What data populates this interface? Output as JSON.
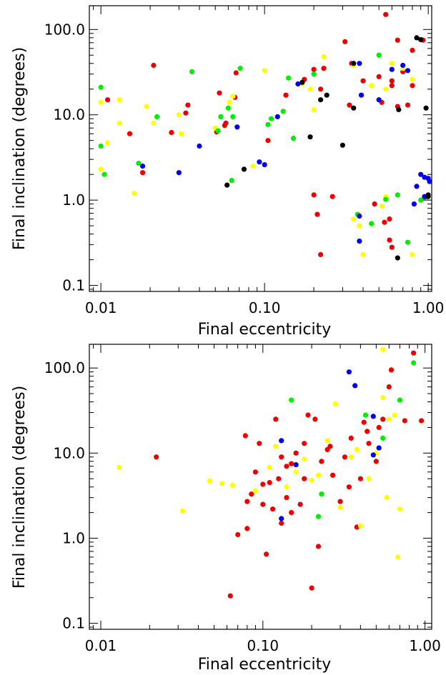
{
  "colors": {
    "red": "#ee0000",
    "yellow": "#ffff00",
    "green": "#00ee00",
    "blue": "#0000ee",
    "black": "#000000"
  },
  "chart_data": [
    {
      "type": "scatter",
      "xlabel": "Final eccentricity",
      "ylabel": "Final inclination (degrees)",
      "xscale": "log",
      "yscale": "log",
      "xlim": [
        0.0085,
        1.05
      ],
      "ylim": [
        0.085,
        190
      ],
      "xticks": [
        {
          "value": 0.01,
          "label": "0.01"
        },
        {
          "value": 0.1,
          "label": "0.10"
        },
        {
          "value": 1.0,
          "label": "1.00"
        }
      ],
      "yticks": [
        {
          "value": 0.1,
          "label": "0.1"
        },
        {
          "value": 1.0,
          "label": "1.0"
        },
        {
          "value": 10.0,
          "label": "10.0"
        },
        {
          "value": 100.0,
          "label": "100.0"
        }
      ],
      "series": [
        {
          "color": "red",
          "points": [
            [
              0.011,
              15
            ],
            [
              0.015,
              6
            ],
            [
              0.018,
              2.1
            ],
            [
              0.021,
              38
            ],
            [
              0.027,
              6.2
            ],
            [
              0.033,
              10.5
            ],
            [
              0.034,
              13
            ],
            [
              0.051,
              6.3
            ],
            [
              0.053,
              18
            ],
            [
              0.057,
              7.5
            ],
            [
              0.058,
              8
            ],
            [
              0.066,
              16
            ],
            [
              0.067,
              31
            ],
            [
              0.105,
              5
            ],
            [
              0.135,
              17
            ],
            [
              0.175,
              26
            ],
            [
              0.2,
              34
            ],
            [
              0.2,
              1.15
            ],
            [
              0.21,
              0.68
            ],
            [
              0.22,
              0.23
            ],
            [
              0.22,
              20
            ],
            [
              0.23,
              35
            ],
            [
              0.26,
              1.1
            ],
            [
              0.31,
              72
            ],
            [
              0.33,
              13
            ],
            [
              0.34,
              40
            ],
            [
              0.4,
              25
            ],
            [
              0.47,
              0.9
            ],
            [
              0.5,
              28
            ],
            [
              0.52,
              14
            ],
            [
              0.54,
              0.55
            ],
            [
              0.55,
              150
            ],
            [
              0.58,
              0.6
            ],
            [
              0.58,
              0.34
            ],
            [
              0.6,
              25
            ],
            [
              0.6,
              0.28
            ],
            [
              0.6,
              22
            ],
            [
              0.65,
              12.5
            ],
            [
              0.65,
              75
            ],
            [
              0.7,
              32
            ],
            [
              0.75,
              13
            ],
            [
              0.8,
              22
            ],
            [
              0.8,
              57
            ],
            [
              0.93,
              75
            ]
          ]
        },
        {
          "color": "yellow",
          "points": [
            [
              0.01,
              14
            ],
            [
              0.01,
              2.3
            ],
            [
              0.011,
              4.7
            ],
            [
              0.013,
              15
            ],
            [
              0.013,
              8
            ],
            [
              0.016,
              1.2
            ],
            [
              0.019,
              12.5
            ],
            [
              0.021,
              8
            ],
            [
              0.03,
              10
            ],
            [
              0.031,
              6
            ],
            [
              0.05,
              7
            ],
            [
              0.061,
              14
            ],
            [
              0.064,
              16.5
            ],
            [
              0.085,
              2.5
            ],
            [
              0.1,
              33
            ],
            [
              0.17,
              23
            ],
            [
              0.19,
              20
            ],
            [
              0.2,
              11.5
            ],
            [
              0.23,
              48
            ],
            [
              0.35,
              0.6
            ],
            [
              0.35,
              38
            ],
            [
              0.38,
              0.5
            ],
            [
              0.4,
              0.23
            ],
            [
              0.45,
              22
            ],
            [
              0.45,
              0.53
            ],
            [
              0.52,
              0.85
            ],
            [
              0.55,
              20
            ],
            [
              0.55,
              1.1
            ],
            [
              0.6,
              40
            ],
            [
              0.7,
              35
            ],
            [
              0.8,
              0.23
            ],
            [
              0.8,
              26
            ]
          ]
        },
        {
          "color": "green",
          "points": [
            [
              0.01,
              21
            ],
            [
              0.01,
              4.3
            ],
            [
              0.0105,
              2
            ],
            [
              0.017,
              2.7
            ],
            [
              0.022,
              9.5
            ],
            [
              0.036,
              32
            ],
            [
              0.052,
              6.5
            ],
            [
              0.054,
              9.5
            ],
            [
              0.06,
              12
            ],
            [
              0.063,
              1.7
            ],
            [
              0.064,
              9.5
            ],
            [
              0.071,
              35
            ],
            [
              0.105,
              7.7
            ],
            [
              0.11,
              9
            ],
            [
              0.13,
              11
            ],
            [
              0.14,
              27
            ],
            [
              0.15,
              5.3
            ],
            [
              0.2,
              30
            ],
            [
              0.37,
              0.68
            ],
            [
              0.45,
              0.53
            ],
            [
              0.5,
              50
            ],
            [
              0.55,
              1.02
            ],
            [
              0.65,
              1.15
            ],
            [
              0.75,
              0.32
            ],
            [
              0.9,
              1
            ],
            [
              0.95,
              1.08
            ]
          ]
        },
        {
          "color": "blue",
          "points": [
            [
              0.018,
              2.5
            ],
            [
              0.03,
              2.1
            ],
            [
              0.04,
              4.3
            ],
            [
              0.068,
              7.2
            ],
            [
              0.093,
              2.8
            ],
            [
              0.1,
              2.6
            ],
            [
              0.12,
              9.5
            ],
            [
              0.16,
              23
            ],
            [
              0.38,
              0.33
            ],
            [
              0.38,
              40
            ],
            [
              0.38,
              0.65
            ],
            [
              0.39,
              17
            ],
            [
              0.5,
              15
            ],
            [
              0.6,
              34
            ],
            [
              0.7,
              38
            ],
            [
              0.75,
              33
            ],
            [
              0.85,
              1.45
            ],
            [
              0.9,
              2
            ],
            [
              0.95,
              1.85
            ],
            [
              0.95,
              1.1
            ],
            [
              1.02,
              1.65
            ],
            [
              1.0,
              1.8
            ],
            [
              0.82,
              0.9
            ]
          ]
        },
        {
          "color": "black",
          "points": [
            [
              0.059,
              1.5
            ],
            [
              0.075,
              2.3
            ],
            [
              0.17,
              24
            ],
            [
              0.19,
              5.5
            ],
            [
              0.22,
              15
            ],
            [
              0.24,
              17
            ],
            [
              0.3,
              4.4
            ],
            [
              0.35,
              12
            ],
            [
              0.35,
              40
            ],
            [
              0.65,
              0.21
            ],
            [
              0.66,
              11.5
            ],
            [
              0.85,
              80
            ],
            [
              0.9,
              76
            ],
            [
              0.97,
              12
            ],
            [
              0.99,
              1.1
            ],
            [
              1.0,
              1.15
            ],
            [
              1.0,
              1.1
            ]
          ]
        }
      ]
    },
    {
      "type": "scatter",
      "xlabel": "Final eccentricity",
      "ylabel": "Final inclination (degrees)",
      "xscale": "log",
      "yscale": "log",
      "xlim": [
        0.0085,
        1.1
      ],
      "ylim": [
        0.085,
        190
      ],
      "xticks": [
        {
          "value": 0.01,
          "label": "0.01"
        },
        {
          "value": 0.1,
          "label": "0.10"
        },
        {
          "value": 1.0,
          "label": "1.00"
        }
      ],
      "yticks": [
        {
          "value": 0.1,
          "label": "0.1"
        },
        {
          "value": 1.0,
          "label": "1.0"
        },
        {
          "value": 10.0,
          "label": "10.0"
        },
        {
          "value": 100.0,
          "label": "100.0"
        }
      ],
      "series": [
        {
          "color": "red",
          "points": [
            [
              0.022,
              9
            ],
            [
              0.063,
              0.21
            ],
            [
              0.07,
              1.1
            ],
            [
              0.08,
              1.3
            ],
            [
              0.078,
              16
            ],
            [
              0.085,
              3.3
            ],
            [
              0.09,
              6
            ],
            [
              0.095,
              13
            ],
            [
              0.1,
              2.5
            ],
            [
              0.1,
              4.3
            ],
            [
              0.105,
              0.65
            ],
            [
              0.11,
              4.5
            ],
            [
              0.115,
              2.2
            ],
            [
              0.12,
              25
            ],
            [
              0.125,
              5
            ],
            [
              0.13,
              9
            ],
            [
              0.13,
              1.5
            ],
            [
              0.14,
              3
            ],
            [
              0.14,
              7
            ],
            [
              0.15,
              2
            ],
            [
              0.16,
              10
            ],
            [
              0.17,
              2.5
            ],
            [
              0.18,
              5
            ],
            [
              0.19,
              28
            ],
            [
              0.2,
              0.26
            ],
            [
              0.21,
              25
            ],
            [
              0.22,
              0.8
            ],
            [
              0.23,
              8
            ],
            [
              0.25,
              11
            ],
            [
              0.27,
              5.5
            ],
            [
              0.3,
              2.7
            ],
            [
              0.32,
              9
            ],
            [
              0.35,
              15
            ],
            [
              0.38,
              1.35
            ],
            [
              0.4,
              5
            ],
            [
              0.42,
              23
            ],
            [
              0.44,
              18
            ],
            [
              0.45,
              13
            ],
            [
              0.5,
              8
            ],
            [
              0.52,
              20
            ],
            [
              0.55,
              25
            ],
            [
              0.6,
              60
            ],
            [
              0.62,
              95
            ],
            [
              0.75,
              24
            ],
            [
              0.85,
              150
            ],
            [
              0.95,
              24
            ],
            [
              0.08,
              2.7
            ],
            [
              0.15,
              7.5
            ],
            [
              0.18,
              13
            ],
            [
              0.26,
              12
            ],
            [
              0.34,
              4
            ]
          ]
        },
        {
          "color": "yellow",
          "points": [
            [
              0.013,
              6.8
            ],
            [
              0.032,
              2.1
            ],
            [
              0.047,
              4.7
            ],
            [
              0.056,
              4.4
            ],
            [
              0.065,
              4.2
            ],
            [
              0.09,
              3.6
            ],
            [
              0.11,
              6.8
            ],
            [
              0.12,
              12
            ],
            [
              0.14,
              4
            ],
            [
              0.16,
              6
            ],
            [
              0.18,
              8.5
            ],
            [
              0.2,
              4.8
            ],
            [
              0.22,
              5.5
            ],
            [
              0.25,
              14
            ],
            [
              0.28,
              38
            ],
            [
              0.3,
              2.3
            ],
            [
              0.35,
              9
            ],
            [
              0.38,
              11
            ],
            [
              0.4,
              1.4
            ],
            [
              0.45,
              5
            ],
            [
              0.5,
              10
            ],
            [
              0.55,
              45
            ],
            [
              0.55,
              165
            ],
            [
              0.58,
              3
            ],
            [
              0.6,
              25
            ],
            [
              0.65,
              28
            ],
            [
              0.7,
              2.2
            ],
            [
              0.68,
              0.6
            ]
          ]
        },
        {
          "color": "green",
          "points": [
            [
              0.15,
              42
            ],
            [
              0.22,
              1.8
            ],
            [
              0.23,
              3.3
            ],
            [
              0.43,
              28
            ],
            [
              0.55,
              15
            ],
            [
              0.7,
              42
            ],
            [
              0.85,
              115
            ]
          ]
        },
        {
          "color": "blue",
          "points": [
            [
              0.13,
              14
            ],
            [
              0.13,
              1.7
            ],
            [
              0.16,
              7.3
            ],
            [
              0.34,
              90
            ],
            [
              0.37,
              62
            ],
            [
              0.48,
              27
            ],
            [
              0.52,
              11.5
            ],
            [
              0.48,
              9.5
            ]
          ]
        }
      ]
    }
  ]
}
